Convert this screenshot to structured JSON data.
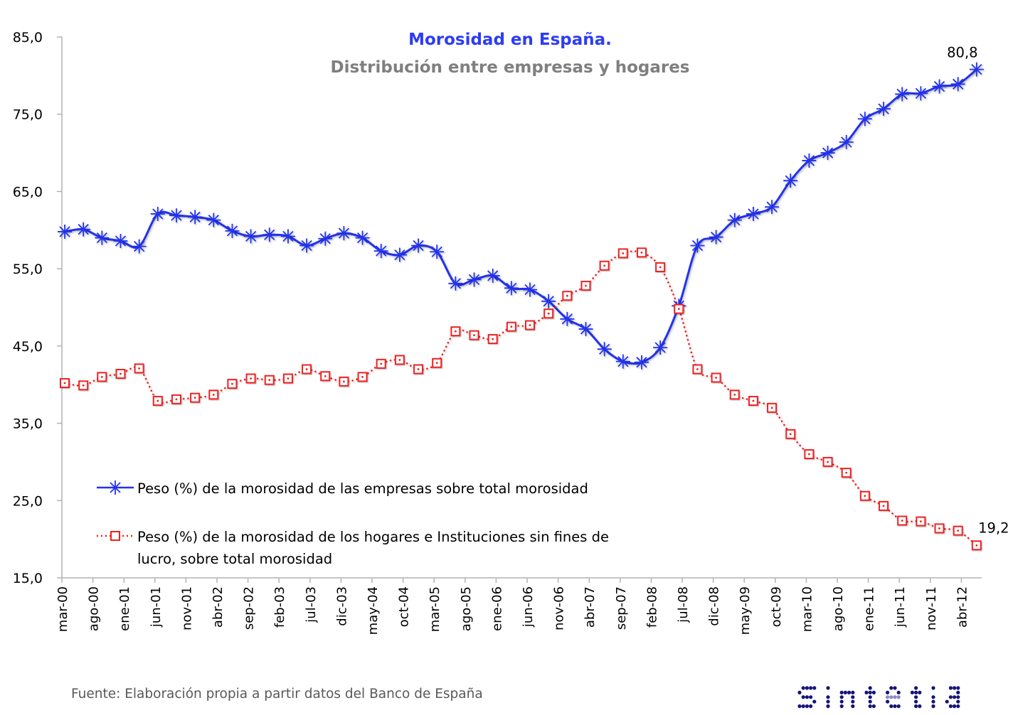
{
  "chart_data": {
    "type": "line",
    "title": "Morosidad en España.",
    "subtitle": "Distribución entre empresas y hogares",
    "xlabel": "",
    "ylabel": "",
    "ylim": [
      15,
      85
    ],
    "yticks": [
      "15,0",
      "25,0",
      "35,0",
      "45,0",
      "55,0",
      "65,0",
      "75,0",
      "85,0"
    ],
    "ytick_values": [
      15,
      25,
      35,
      45,
      55,
      65,
      75,
      85
    ],
    "xtick_labels": [
      "mar-00",
      "ago-00",
      "ene-01",
      "jun-01",
      "nov-01",
      "abr-02",
      "sep-02",
      "feb-03",
      "jul-03",
      "dic-03",
      "may-04",
      "oct-04",
      "mar-05",
      "ago-05",
      "ene-06",
      "jun-06",
      "nov-06",
      "abr-07",
      "sep-07",
      "feb-08",
      "jul-08",
      "dic-08",
      "may-09",
      "oct-09",
      "mar-10",
      "ago-10",
      "ene-11",
      "jun-11",
      "nov-11",
      "abr-12"
    ],
    "x_months_from_mar00": [
      0,
      3,
      6,
      9,
      12,
      15,
      18,
      21,
      24,
      27,
      30,
      33,
      36,
      39,
      42,
      45,
      48,
      51,
      54,
      57,
      60,
      63,
      66,
      69,
      72,
      75,
      78,
      81,
      84,
      87,
      90,
      93,
      96,
      99,
      102,
      105,
      108,
      111,
      114,
      117,
      120,
      123,
      126,
      129,
      132,
      135,
      138,
      141,
      144,
      147
    ],
    "grid": false,
    "legend_position": "bottom-left",
    "series": [
      {
        "name": "Peso (%) de la morosidad de las empresas sobre total morosidad",
        "color": "#2233ee",
        "marker": "asterisk",
        "line": "solid",
        "values": [
          59.8,
          60.1,
          59.0,
          58.6,
          57.9,
          62.1,
          61.9,
          61.7,
          61.3,
          59.9,
          59.2,
          59.4,
          59.2,
          58.0,
          58.9,
          59.6,
          59.0,
          57.3,
          56.8,
          58.0,
          57.2,
          53.1,
          53.6,
          54.1,
          52.5,
          52.3,
          50.8,
          48.5,
          47.2,
          44.6,
          43.0,
          42.9,
          44.8,
          50.2,
          58.0,
          59.1,
          61.3,
          62.1,
          63.0,
          66.4,
          69.0,
          70.0,
          71.4,
          74.4,
          75.7,
          77.6,
          77.7,
          78.6,
          78.9,
          80.8
        ],
        "last_label": "80,8"
      },
      {
        "name_line1": "Peso (%) de la morosidad de los hogares e Instituciones sin fines de",
        "name_line2": "lucro, sobre total morosidad",
        "color": "#ee2222",
        "marker": "square",
        "line": "dotted",
        "values": [
          40.2,
          39.9,
          41.0,
          41.4,
          42.1,
          37.9,
          38.1,
          38.3,
          38.7,
          40.1,
          40.8,
          40.6,
          40.8,
          42.0,
          41.1,
          40.4,
          41.0,
          42.7,
          43.2,
          42.0,
          42.8,
          46.9,
          46.4,
          45.9,
          47.5,
          47.7,
          49.2,
          51.5,
          52.8,
          55.4,
          57.0,
          57.1,
          55.2,
          49.8,
          42.0,
          40.9,
          38.7,
          37.9,
          37.0,
          33.6,
          31.0,
          30.0,
          28.6,
          25.6,
          24.3,
          22.4,
          22.3,
          21.4,
          21.1,
          19.2
        ],
        "last_label": "19,2"
      }
    ]
  },
  "footer": {
    "source": "Fuente: Elaboración propia a partir datos del Banco de España",
    "logo_text": "sintetia",
    "logo_color": "#14147a",
    "logo_accent": "#8a8ac4"
  }
}
